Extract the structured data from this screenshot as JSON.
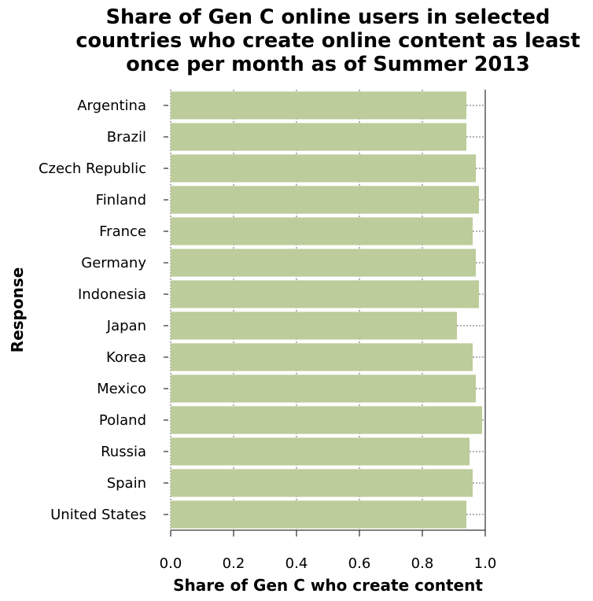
{
  "chart_data": {
    "type": "bar",
    "orientation": "horizontal",
    "title_lines": [
      "Share of Gen C online users in selected",
      "countries who create online content as least",
      "once per month as of Summer 2013"
    ],
    "xlabel": "Share of Gen C who create content",
    "ylabel": "Response",
    "xlim": [
      0,
      1.0
    ],
    "xticks": [
      "0.0",
      "0.2",
      "0.4",
      "0.6",
      "0.8",
      "1.0"
    ],
    "grid": true,
    "bar_color": "#bccc9a",
    "categories": [
      "Argentina",
      "Brazil",
      "Czech Republic",
      "Finland",
      "France",
      "Germany",
      "Indonesia",
      "Japan",
      "Korea",
      "Mexico",
      "Poland",
      "Russia",
      "Spain",
      "United States"
    ],
    "values": [
      0.94,
      0.94,
      0.97,
      0.98,
      0.96,
      0.97,
      0.98,
      0.91,
      0.96,
      0.97,
      0.99,
      0.95,
      0.96,
      0.94
    ]
  }
}
